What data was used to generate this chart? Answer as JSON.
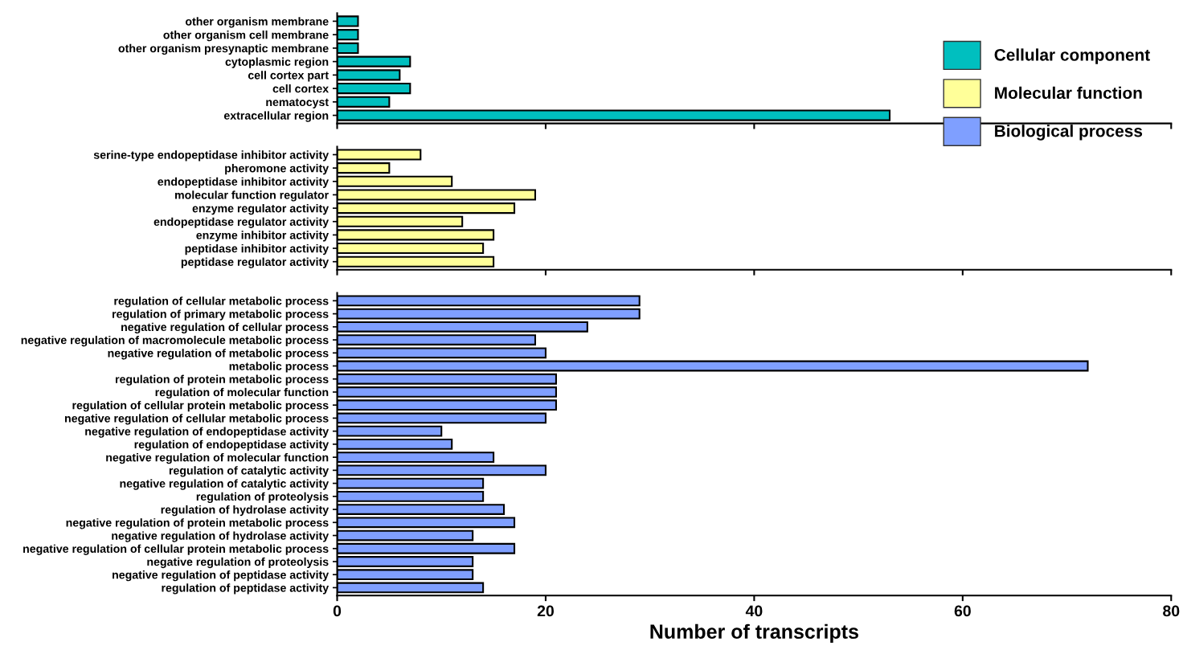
{
  "chart_data": [
    {
      "type": "bar",
      "orientation": "horizontal",
      "categories": [
        "other organism membrane",
        "other organism cell membrane",
        "other organism presynaptic membrane",
        "cytoplasmic region",
        "cell cortex part",
        "cell cortex",
        "nematocyst",
        "extracellular region"
      ],
      "series": [
        {
          "name": "Cellular component",
          "color": "#00bfbf",
          "values": [
            2,
            2,
            2,
            7,
            6,
            7,
            5,
            53
          ]
        }
      ],
      "xlim": [
        0,
        80
      ],
      "xticks": [
        0,
        20,
        40,
        60,
        80
      ],
      "tick_labels": "y",
      "legend": "top right",
      "grid": false
    },
    {
      "type": "bar",
      "orientation": "horizontal",
      "categories": [
        "serine-type endopeptidase inhibitor activity",
        "pheromone activity",
        "endopeptidase inhibitor activity",
        "molecular function regulator",
        "enzyme regulator activity",
        "endopeptidase regulator activity",
        "enzyme inhibitor activity",
        "peptidase inhibitor activity",
        "peptidase regulator activity"
      ],
      "series": [
        {
          "name": "Molecular function",
          "color": "#ffff99",
          "values": [
            8,
            5,
            11,
            19,
            17,
            12,
            15,
            14,
            15
          ]
        }
      ],
      "xlim": [
        0,
        80
      ],
      "xticks": [
        0,
        20,
        40,
        60,
        80
      ],
      "tick_labels": "y",
      "legend": "top right",
      "grid": false
    },
    {
      "type": "bar",
      "orientation": "horizontal",
      "xlabel": "Number of transcripts",
      "categories": [
        "regulation of cellular metabolic process",
        "regulation of primary metabolic process",
        "negative regulation of cellular process",
        "negative regulation of macromolecule metabolic process",
        "negative regulation of metabolic process",
        "metabolic process",
        "regulation of protein metabolic process",
        "regulation of molecular function",
        "regulation of cellular protein metabolic process",
        "negative regulation of cellular metabolic process",
        "negative regulation of endopeptidase activity",
        "regulation of endopeptidase activity",
        "negative regulation of molecular function",
        "regulation of catalytic activity",
        "negative regulation of catalytic activity",
        "regulation of proteolysis",
        "regulation of hydrolase activity",
        "negative regulation of protein metabolic process",
        "negative regulation of hydrolase activity",
        "negative regulation of cellular protein metabolic process",
        "negative regulation of proteolysis",
        "negative regulation of peptidase activity",
        "regulation of peptidase activity"
      ],
      "series": [
        {
          "name": "Biological process",
          "color": "#7f9fff",
          "values": [
            29,
            29,
            24,
            19,
            20,
            72,
            21,
            21,
            21,
            20,
            10,
            11,
            15,
            20,
            14,
            14,
            16,
            17,
            13,
            17,
            13,
            13,
            14
          ]
        }
      ],
      "xlim": [
        0,
        80
      ],
      "xticks": [
        0,
        20,
        40,
        60,
        80
      ],
      "legend": "top right",
      "grid": false
    }
  ]
}
